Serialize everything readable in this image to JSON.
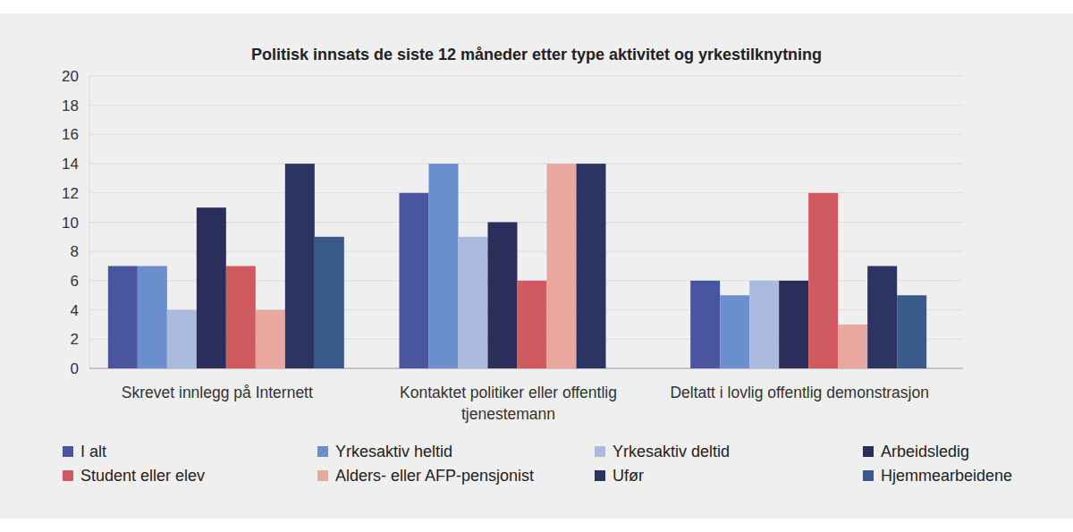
{
  "chart_data": {
    "type": "bar",
    "title": "Politisk innsats de siste 12 måneder etter type aktivitet og yrkestilknytning",
    "categories": [
      "Skrevet innlegg på Internett",
      "Kontaktet politiker eller offentlig tjenestemann",
      "Deltatt i lovlig offentlig demonstrasjon"
    ],
    "series": [
      {
        "name": "I alt",
        "color": "#4a55a2",
        "values": [
          7,
          12,
          6
        ]
      },
      {
        "name": "Yrkesaktiv heltid",
        "color": "#6b8fcc",
        "values": [
          7,
          14,
          5
        ]
      },
      {
        "name": "Yrkesaktiv deltid",
        "color": "#aab9de",
        "values": [
          4,
          9,
          6
        ]
      },
      {
        "name": "Arbeidsledig",
        "color": "#2b2d5a",
        "values": [
          11,
          10,
          6
        ]
      },
      {
        "name": "Student eller elev",
        "color": "#d05a60",
        "values": [
          7,
          6,
          12
        ]
      },
      {
        "name": "Alders- eller AFP-pensjonist",
        "color": "#e8a8a0",
        "values": [
          4,
          14,
          3
        ]
      },
      {
        "name": "Ufør",
        "color": "#2c3462",
        "values": [
          14,
          14,
          7
        ]
      },
      {
        "name": "Hjemmearbeidene",
        "color": "#3a5a8c",
        "values": [
          9,
          null,
          5
        ]
      }
    ],
    "ylim": [
      0,
      20
    ],
    "yticks": [
      0,
      2,
      4,
      6,
      8,
      10,
      12,
      14,
      16,
      18,
      20
    ],
    "grid": true,
    "legend": "bottom"
  }
}
